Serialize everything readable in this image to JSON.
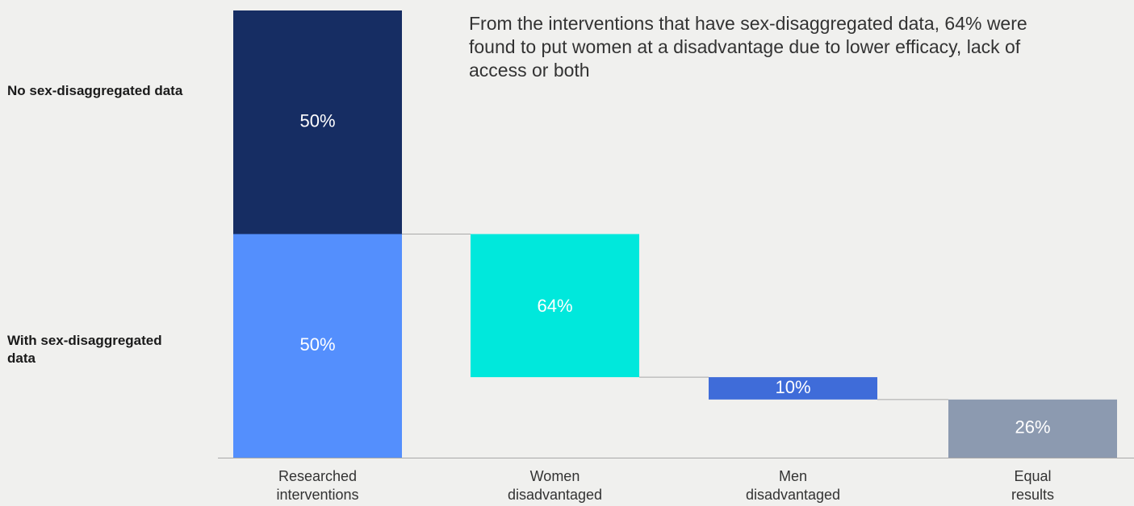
{
  "row_labels": {
    "top": "No sex-disaggregated data",
    "bottom": "With sex-disaggregated data"
  },
  "annotation": "From the interventions that have sex-disaggregated data, 64% were found to put women at a disadvantage due to lower efficacy, lack of access or both",
  "chart_data": {
    "type": "bar",
    "subtype": "waterfall",
    "title": "",
    "xlabel": "",
    "ylabel": "",
    "ylim": [
      0,
      100
    ],
    "grid": false,
    "legend": "none",
    "categories": [
      "Researched interventions",
      "Women disadvantaged",
      "Men disadvantaged",
      "Equal results"
    ],
    "category_lines": [
      [
        "Researched",
        "interventions"
      ],
      [
        "Women",
        "disadvantaged"
      ],
      [
        "Men",
        "disadvantaged"
      ],
      [
        "Equal",
        "results"
      ]
    ],
    "stacked_first_bar": [
      {
        "name": "With sex-disaggregated data",
        "value": 50,
        "label": "50%",
        "color": "#548ffd"
      },
      {
        "name": "No sex-disaggregated data",
        "value": 50,
        "label": "50%",
        "color": "#162d63"
      }
    ],
    "breakdown_of": "With sex-disaggregated data",
    "breakdown": [
      {
        "category": "Women disadvantaged",
        "value": 64,
        "label": "64%",
        "color": "#00e8dc"
      },
      {
        "category": "Men disadvantaged",
        "value": 10,
        "label": "10%",
        "color": "#3f6cd9"
      },
      {
        "category": "Equal results",
        "value": 26,
        "label": "26%",
        "color": "#8c9ab0"
      }
    ]
  }
}
